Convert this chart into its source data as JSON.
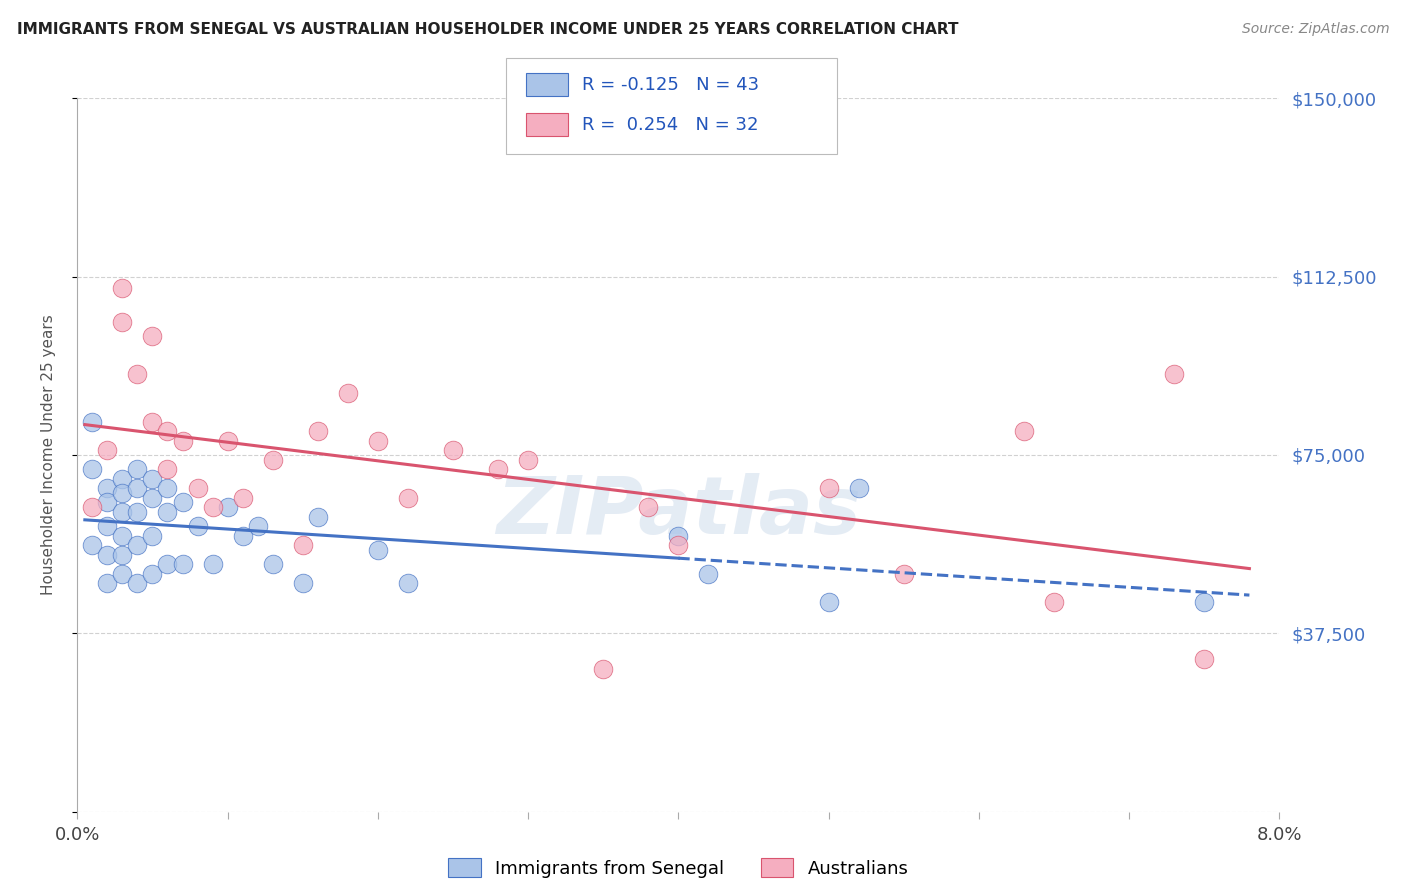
{
  "title": "IMMIGRANTS FROM SENEGAL VS AUSTRALIAN HOUSEHOLDER INCOME UNDER 25 YEARS CORRELATION CHART",
  "source": "Source: ZipAtlas.com",
  "ylabel": "Householder Income Under 25 years",
  "y_ticks": [
    0,
    37500,
    75000,
    112500,
    150000
  ],
  "y_tick_labels": [
    "",
    "$37,500",
    "$75,000",
    "$112,500",
    "$150,000"
  ],
  "xlim": [
    0.0,
    0.08
  ],
  "ylim": [
    0,
    150000
  ],
  "blue_color": "#aac4e8",
  "pink_color": "#f5aec0",
  "blue_line_color": "#4472c4",
  "pink_line_color": "#d9546e",
  "watermark": "ZIPatlas",
  "blue_x": [
    0.001,
    0.001,
    0.001,
    0.002,
    0.002,
    0.002,
    0.002,
    0.002,
    0.003,
    0.003,
    0.003,
    0.003,
    0.003,
    0.003,
    0.004,
    0.004,
    0.004,
    0.004,
    0.004,
    0.005,
    0.005,
    0.005,
    0.005,
    0.006,
    0.006,
    0.006,
    0.007,
    0.007,
    0.008,
    0.009,
    0.01,
    0.011,
    0.012,
    0.013,
    0.015,
    0.016,
    0.02,
    0.022,
    0.04,
    0.042,
    0.05,
    0.052,
    0.075
  ],
  "blue_y": [
    82000,
    72000,
    56000,
    68000,
    65000,
    60000,
    54000,
    48000,
    70000,
    67000,
    63000,
    58000,
    54000,
    50000,
    72000,
    68000,
    63000,
    56000,
    48000,
    70000,
    66000,
    58000,
    50000,
    68000,
    63000,
    52000,
    65000,
    52000,
    60000,
    52000,
    64000,
    58000,
    60000,
    52000,
    48000,
    62000,
    55000,
    48000,
    58000,
    50000,
    44000,
    68000,
    44000
  ],
  "pink_x": [
    0.001,
    0.002,
    0.003,
    0.003,
    0.004,
    0.005,
    0.005,
    0.006,
    0.006,
    0.007,
    0.008,
    0.009,
    0.01,
    0.011,
    0.013,
    0.015,
    0.016,
    0.018,
    0.02,
    0.022,
    0.025,
    0.028,
    0.03,
    0.035,
    0.038,
    0.04,
    0.05,
    0.055,
    0.063,
    0.065,
    0.073,
    0.075
  ],
  "pink_y": [
    64000,
    76000,
    110000,
    103000,
    92000,
    100000,
    82000,
    80000,
    72000,
    78000,
    68000,
    64000,
    78000,
    66000,
    74000,
    56000,
    80000,
    88000,
    78000,
    66000,
    76000,
    72000,
    74000,
    30000,
    64000,
    56000,
    68000,
    50000,
    80000,
    44000,
    92000,
    32000
  ]
}
